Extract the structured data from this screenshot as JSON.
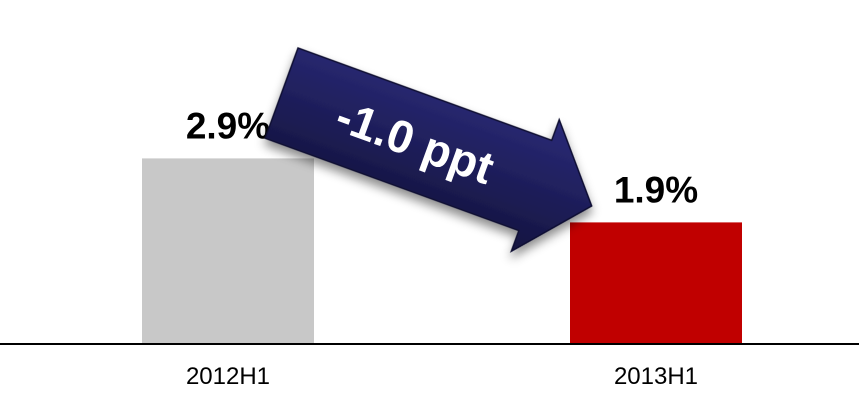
{
  "chart_data": {
    "type": "bar",
    "title": "",
    "xlabel": "",
    "ylabel": "",
    "categories": [
      "2012H1",
      "2013H1"
    ],
    "values": [
      2.9,
      1.9
    ],
    "value_labels": [
      "2.9%",
      "1.9%"
    ],
    "unit": "%",
    "ylim": [
      0,
      5
    ],
    "grid": false,
    "legend": "none",
    "bar_colors": [
      "#c8c8c8",
      "#c00000"
    ],
    "annotation": {
      "text": "-1.0 ppt",
      "shape": "arrow",
      "from": "2012H1",
      "to": "2013H1",
      "color": "#1f1f5c"
    }
  }
}
